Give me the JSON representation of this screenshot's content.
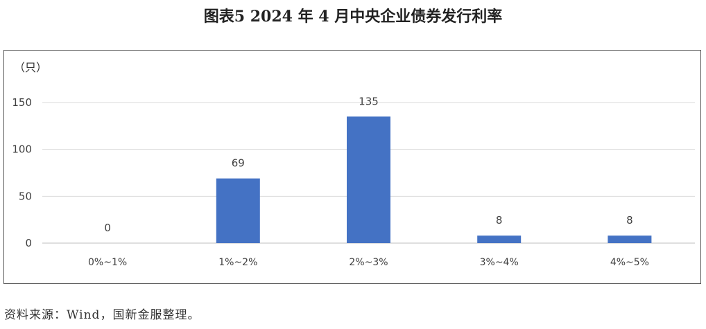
{
  "figure": {
    "title": "图表5 2024 年 4 月中央企业债券发行利率",
    "source": "资料来源：Wind，国新金服整理。"
  },
  "chart_data": {
    "type": "bar",
    "title": "",
    "xlabel": "",
    "ylabel": "（只）",
    "categories": [
      "0%~1%",
      "1%~2%",
      "2%~3%",
      "3%~4%",
      "4%~5%"
    ],
    "values": [
      0,
      69,
      135,
      8,
      8
    ],
    "ylim": [
      0,
      150
    ],
    "yticks": [
      0,
      50,
      100,
      150
    ],
    "grid": true,
    "bar_color": "#4472c4",
    "data_labels": true
  }
}
